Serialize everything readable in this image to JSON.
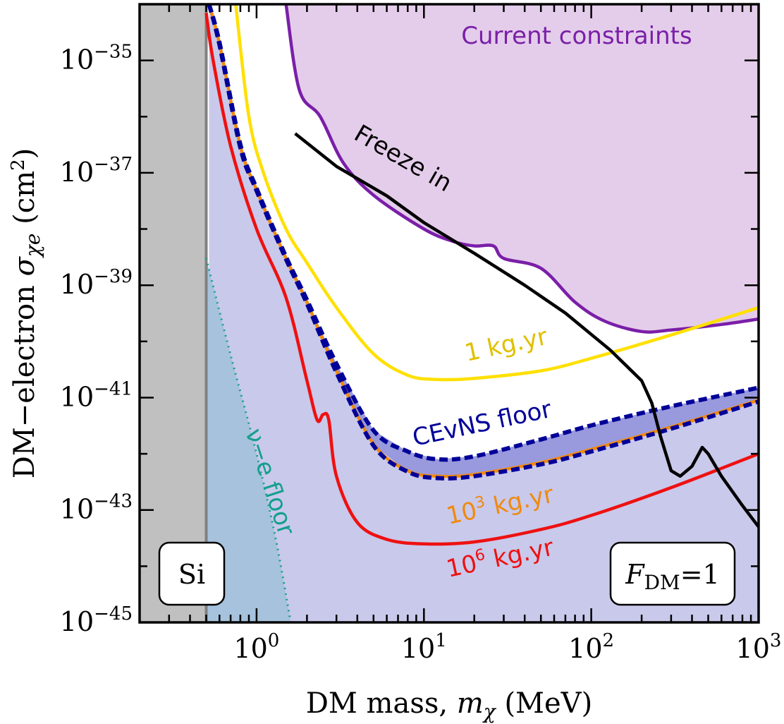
{
  "chart_data": {
    "type": "line",
    "xlabel": "DM mass, m_χ (MeV)",
    "ylabel": "DM–electron σ_χe (cm²)",
    "x_scale": "log",
    "y_scale": "log",
    "xlim": [
      0.2,
      1000
    ],
    "ylim": [
      1e-45,
      1e-34
    ],
    "grid": false,
    "x_ticks": [
      {
        "value": 1,
        "base": "10",
        "exp": "0"
      },
      {
        "value": 10,
        "base": "10",
        "exp": "1"
      },
      {
        "value": 100,
        "base": "10",
        "exp": "2"
      },
      {
        "value": 1000,
        "base": "10",
        "exp": "3"
      }
    ],
    "y_ticks": [
      {
        "value": 1e-35,
        "base": "10",
        "exp": "−35"
      },
      {
        "value": 1e-37,
        "base": "10",
        "exp": "−37"
      },
      {
        "value": 1e-39,
        "base": "10",
        "exp": "−39"
      },
      {
        "value": 1e-41,
        "base": "10",
        "exp": "−41"
      },
      {
        "value": 1e-43,
        "base": "10",
        "exp": "−43"
      },
      {
        "value": 1e-45,
        "base": "10",
        "exp": "−45"
      }
    ],
    "series": [
      {
        "name": "Current constraints",
        "color": "#7a1fa8",
        "x": [
          1.5,
          1.8,
          2.4,
          3.3,
          5,
          10,
          15,
          20,
          26,
          30,
          50,
          80,
          120,
          200,
          300,
          600,
          1000
        ],
        "y": [
          1e-34,
          3e-36,
          1e-36,
          1.5e-37,
          4e-38,
          1e-38,
          6e-39,
          5e-39,
          5e-39,
          3e-39,
          2e-39,
          5e-40,
          2.3e-40,
          1.5e-40,
          1.6e-40,
          2e-40,
          2.5e-40
        ]
      },
      {
        "name": "Freeze in",
        "color": "#000000",
        "x": [
          1.7,
          3,
          6,
          10,
          20,
          40,
          70,
          130,
          200,
          230,
          260,
          300,
          340,
          400,
          460,
          500,
          600,
          800,
          1000
        ],
        "y": [
          5e-37,
          1.3e-37,
          3.9e-38,
          1.3e-38,
          3.7e-39,
          1e-39,
          3.2e-40,
          7e-41,
          2e-41,
          8e-42,
          2e-42,
          5e-43,
          4e-43,
          6e-43,
          1.3e-42,
          1e-42,
          4e-43,
          1.2e-43,
          5e-44
        ]
      },
      {
        "name": "1 kg.yr",
        "color": "#ffe000",
        "x": [
          0.75,
          0.9,
          1.1,
          1.5,
          2,
          3,
          5,
          8,
          12,
          20,
          50,
          100,
          300,
          1000
        ],
        "y": [
          1e-34,
          1e-36,
          1e-37,
          1e-38,
          2.5e-39,
          4e-40,
          6e-41,
          2.5e-41,
          2.1e-41,
          2.2e-41,
          3e-41,
          5e-41,
          1.3e-40,
          4e-40
        ]
      },
      {
        "name": "10^3 kg.yr",
        "color": "#f08a10",
        "x": [
          0.52,
          0.6,
          0.8,
          1,
          1.5,
          2,
          3,
          5,
          8,
          12,
          20,
          50,
          100,
          300,
          1000
        ],
        "y": [
          1e-34,
          2e-35,
          3e-37,
          5e-38,
          3e-39,
          5e-40,
          3e-41,
          1.5e-42,
          5e-43,
          4e-43,
          4.3e-43,
          7e-43,
          1.2e-42,
          3e-42,
          9e-42
        ]
      },
      {
        "name": "CEvNS floor (upper)",
        "color": "#000099",
        "x": [
          0.52,
          0.6,
          0.8,
          1,
          1.5,
          2,
          3,
          5,
          8,
          12,
          20,
          50,
          100,
          300,
          1000
        ],
        "y": [
          1e-34,
          2.1e-35,
          3.2e-37,
          5.3e-38,
          3.2e-39,
          5.5e-40,
          4e-41,
          2.6e-42,
          1.1e-42,
          8e-43,
          9e-43,
          1.8e-42,
          3.2e-42,
          7e-42,
          1.5e-41
        ]
      },
      {
        "name": "CEvNS floor (lower)",
        "color": "#000099",
        "x": [
          0.52,
          0.6,
          0.8,
          1,
          1.5,
          2,
          3,
          5,
          8,
          12,
          20,
          50,
          100,
          300,
          1000
        ],
        "y": [
          1e-34,
          1.9e-35,
          2.8e-37,
          4.8e-38,
          2.9e-39,
          4.7e-40,
          2.8e-41,
          1.4e-42,
          4.8e-43,
          3.7e-43,
          4e-43,
          6.5e-43,
          1.1e-42,
          2.8e-42,
          8.5e-42
        ]
      },
      {
        "name": "10^6 kg.yr",
        "color": "#ee1111",
        "x": [
          0.5,
          0.55,
          0.7,
          1,
          1.5,
          2,
          2.3,
          2.5,
          2.7,
          3,
          4,
          6,
          10,
          20,
          50,
          100,
          300,
          1000
        ],
        "y": [
          7e-35,
          1e-35,
          3e-37,
          1e-38,
          6e-40,
          2e-41,
          4e-42,
          5e-42,
          4e-42,
          4e-43,
          6e-44,
          3e-44,
          2.5e-44,
          2.7e-44,
          4.5e-44,
          8e-44,
          2.5e-43,
          1e-42
        ]
      },
      {
        "name": "ν–e floor",
        "color": "#14a08c",
        "x": [
          0.5,
          0.7,
          1,
          1.3,
          1.6
        ],
        "y": [
          3e-39,
          5.7e-41,
          1e-42,
          3.1e-44,
          1e-45
        ]
      }
    ],
    "annotations": [
      {
        "text": "Current constraints"
      },
      {
        "text": "Freeze in"
      },
      {
        "text": "1 kg.yr"
      },
      {
        "text": "CEvNS floor"
      },
      {
        "text": "10",
        "sup": "3",
        "suffix": " kg.yr"
      },
      {
        "text": "10",
        "sup": "6",
        "suffix": " kg.yr"
      },
      {
        "text": "ν−e floor"
      },
      {
        "text": "Si"
      },
      {
        "text": "F",
        "sub": "DM",
        "suffix": "=1"
      }
    ],
    "si_threshold_mev": 0.5
  }
}
